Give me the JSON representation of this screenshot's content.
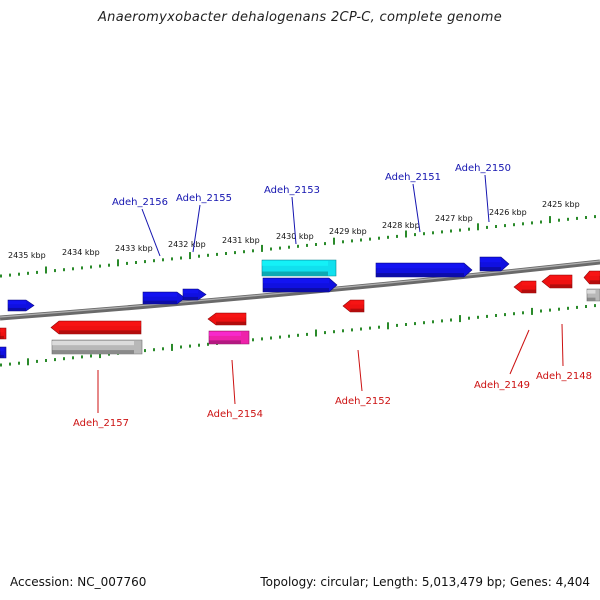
{
  "title": "Anaeromyxobacter dehalogenans 2CP-C, complete genome",
  "footer": {
    "accession": "Accession: NC_007760",
    "topology": "Topology: circular; Length: 5,013,479 bp; Genes: 4,404"
  },
  "colors": {
    "forward_gene": "#1010e0",
    "reverse_gene": "#ee1111",
    "rna_cyan": "#11e0ee",
    "pseudo_gray": "#b8b8b8",
    "magenta": "#ee22aa",
    "tick_green": "#2a8a2a",
    "label_blue": "#1515b0",
    "label_red": "#cc1111"
  },
  "scale_labels": [
    "2435 kbp",
    "2434 kbp",
    "2433 kbp",
    "2432 kbp",
    "2431 kbp",
    "2430 kbp",
    "2429 kbp",
    "2428 kbp",
    "2427 kbp",
    "2426 kbp",
    "2425 kbp"
  ],
  "gene_labels_top": [
    "Adeh_2156",
    "Adeh_2155",
    "Adeh_2153",
    "Adeh_2151",
    "Adeh_2150"
  ],
  "gene_labels_bottom": [
    "Adeh_2157",
    "Adeh_2154",
    "Adeh_2152",
    "Adeh_2149",
    "Adeh_2148"
  ]
}
